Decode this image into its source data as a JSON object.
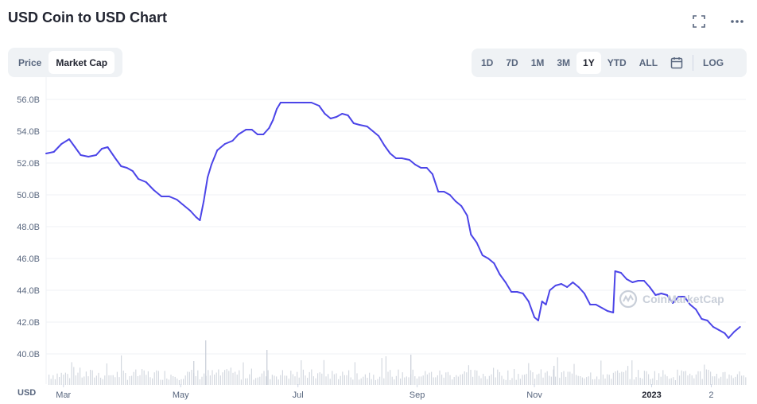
{
  "header": {
    "title": "USD Coin to USD Chart"
  },
  "metric_toggle": {
    "price": "Price",
    "market_cap": "Market Cap",
    "active": "Market Cap"
  },
  "ranges": {
    "items": [
      "1D",
      "7D",
      "1M",
      "3M",
      "1Y",
      "YTD",
      "ALL"
    ],
    "active": "1Y",
    "log_label": "LOG"
  },
  "icons": {
    "fullscreen": "fullscreen-icon",
    "more": "more-icon",
    "calendar": "calendar-icon"
  },
  "currency": "USD",
  "watermark": "CoinMarketCap",
  "colors": {
    "line": "#4c45e8",
    "volume": "#c6cbd6",
    "grid": "#eff2f5"
  },
  "chart_data": {
    "type": "line",
    "ylim": [
      39,
      57
    ],
    "y_ticks": [
      {
        "v": 40,
        "label": "40.0B"
      },
      {
        "v": 42,
        "label": "42.0B"
      },
      {
        "v": 44,
        "label": "44.0B"
      },
      {
        "v": 46,
        "label": "46.0B"
      },
      {
        "v": 48,
        "label": "48.0B"
      },
      {
        "v": 50,
        "label": "50.0B"
      },
      {
        "v": 52,
        "label": "52.0B"
      },
      {
        "v": 54,
        "label": "54.0B"
      },
      {
        "v": 56,
        "label": "56.0B"
      }
    ],
    "x_range": [
      "2022-02-20",
      "2023-02-19"
    ],
    "x_ticks": [
      {
        "date": "2022-03-01",
        "label": "Mar",
        "bold": false
      },
      {
        "date": "2022-05-01",
        "label": "May",
        "bold": false
      },
      {
        "date": "2022-07-01",
        "label": "Jul",
        "bold": false
      },
      {
        "date": "2022-09-01",
        "label": "Sep",
        "bold": false
      },
      {
        "date": "2022-11-01",
        "label": "Nov",
        "bold": false
      },
      {
        "date": "2023-01-01",
        "label": "2023",
        "bold": true
      },
      {
        "date": "2023-02-01",
        "label": "2",
        "bold": false
      }
    ],
    "series": [
      {
        "points": [
          [
            "2022-02-20",
            52.6
          ],
          [
            "2022-02-24",
            52.7
          ],
          [
            "2022-02-28",
            53.2
          ],
          [
            "2022-03-04",
            53.5
          ],
          [
            "2022-03-07",
            53.0
          ],
          [
            "2022-03-10",
            52.5
          ],
          [
            "2022-03-14",
            52.4
          ],
          [
            "2022-03-18",
            52.5
          ],
          [
            "2022-03-21",
            52.9
          ],
          [
            "2022-03-24",
            53.0
          ],
          [
            "2022-03-28",
            52.3
          ],
          [
            "2022-03-31",
            51.8
          ],
          [
            "2022-04-03",
            51.7
          ],
          [
            "2022-04-06",
            51.5
          ],
          [
            "2022-04-09",
            51.0
          ],
          [
            "2022-04-13",
            50.8
          ],
          [
            "2022-04-17",
            50.3
          ],
          [
            "2022-04-21",
            49.9
          ],
          [
            "2022-04-25",
            49.9
          ],
          [
            "2022-04-29",
            49.7
          ],
          [
            "2022-05-02",
            49.4
          ],
          [
            "2022-05-06",
            49.0
          ],
          [
            "2022-05-09",
            48.6
          ],
          [
            "2022-05-11",
            48.4
          ],
          [
            "2022-05-13",
            49.6
          ],
          [
            "2022-05-15",
            51.1
          ],
          [
            "2022-05-17",
            51.9
          ],
          [
            "2022-05-20",
            52.8
          ],
          [
            "2022-05-24",
            53.2
          ],
          [
            "2022-05-28",
            53.4
          ],
          [
            "2022-05-31",
            53.8
          ],
          [
            "2022-06-04",
            54.1
          ],
          [
            "2022-06-07",
            54.1
          ],
          [
            "2022-06-10",
            53.8
          ],
          [
            "2022-06-13",
            53.8
          ],
          [
            "2022-06-16",
            54.2
          ],
          [
            "2022-06-18",
            54.7
          ],
          [
            "2022-06-20",
            55.4
          ],
          [
            "2022-06-22",
            55.8
          ],
          [
            "2022-06-26",
            55.8
          ],
          [
            "2022-06-30",
            55.8
          ],
          [
            "2022-07-04",
            55.8
          ],
          [
            "2022-07-08",
            55.8
          ],
          [
            "2022-07-12",
            55.6
          ],
          [
            "2022-07-15",
            55.1
          ],
          [
            "2022-07-18",
            54.8
          ],
          [
            "2022-07-21",
            54.9
          ],
          [
            "2022-07-24",
            55.1
          ],
          [
            "2022-07-27",
            55.0
          ],
          [
            "2022-07-30",
            54.5
          ],
          [
            "2022-08-02",
            54.4
          ],
          [
            "2022-08-06",
            54.3
          ],
          [
            "2022-08-09",
            54.0
          ],
          [
            "2022-08-12",
            53.7
          ],
          [
            "2022-08-15",
            53.1
          ],
          [
            "2022-08-18",
            52.6
          ],
          [
            "2022-08-21",
            52.3
          ],
          [
            "2022-08-24",
            52.3
          ],
          [
            "2022-08-28",
            52.2
          ],
          [
            "2022-08-31",
            51.9
          ],
          [
            "2022-09-03",
            51.7
          ],
          [
            "2022-09-06",
            51.7
          ],
          [
            "2022-09-09",
            51.3
          ],
          [
            "2022-09-12",
            50.2
          ],
          [
            "2022-09-15",
            50.2
          ],
          [
            "2022-09-18",
            50.0
          ],
          [
            "2022-09-21",
            49.6
          ],
          [
            "2022-09-24",
            49.3
          ],
          [
            "2022-09-27",
            48.7
          ],
          [
            "2022-09-29",
            47.5
          ],
          [
            "2022-10-02",
            47.0
          ],
          [
            "2022-10-05",
            46.2
          ],
          [
            "2022-10-08",
            46.0
          ],
          [
            "2022-10-11",
            45.7
          ],
          [
            "2022-10-14",
            45.0
          ],
          [
            "2022-10-17",
            44.5
          ],
          [
            "2022-10-20",
            43.9
          ],
          [
            "2022-10-23",
            43.9
          ],
          [
            "2022-10-26",
            43.8
          ],
          [
            "2022-10-29",
            43.3
          ],
          [
            "2022-11-01",
            42.3
          ],
          [
            "2022-11-03",
            42.1
          ],
          [
            "2022-11-05",
            43.3
          ],
          [
            "2022-11-07",
            43.1
          ],
          [
            "2022-11-09",
            44.0
          ],
          [
            "2022-11-12",
            44.3
          ],
          [
            "2022-11-15",
            44.4
          ],
          [
            "2022-11-18",
            44.2
          ],
          [
            "2022-11-21",
            44.5
          ],
          [
            "2022-11-24",
            44.2
          ],
          [
            "2022-11-27",
            43.8
          ],
          [
            "2022-11-30",
            43.1
          ],
          [
            "2022-12-03",
            43.1
          ],
          [
            "2022-12-06",
            42.9
          ],
          [
            "2022-12-09",
            42.7
          ],
          [
            "2022-12-12",
            42.6
          ],
          [
            "2022-12-13",
            45.2
          ],
          [
            "2022-12-16",
            45.1
          ],
          [
            "2022-12-19",
            44.7
          ],
          [
            "2022-12-22",
            44.5
          ],
          [
            "2022-12-25",
            44.6
          ],
          [
            "2022-12-28",
            44.6
          ],
          [
            "2022-12-31",
            44.2
          ],
          [
            "2023-01-03",
            43.7
          ],
          [
            "2023-01-06",
            43.8
          ],
          [
            "2023-01-09",
            43.7
          ],
          [
            "2023-01-12",
            43.2
          ],
          [
            "2023-01-15",
            43.6
          ],
          [
            "2023-01-18",
            43.6
          ],
          [
            "2023-01-21",
            43.1
          ],
          [
            "2023-01-24",
            42.8
          ],
          [
            "2023-01-27",
            42.2
          ],
          [
            "2023-01-30",
            42.1
          ],
          [
            "2023-02-02",
            41.7
          ],
          [
            "2023-02-05",
            41.5
          ],
          [
            "2023-02-08",
            41.3
          ],
          [
            "2023-02-10",
            41.0
          ],
          [
            "2023-02-13",
            41.4
          ],
          [
            "2023-02-16",
            41.7
          ]
        ]
      }
    ]
  }
}
